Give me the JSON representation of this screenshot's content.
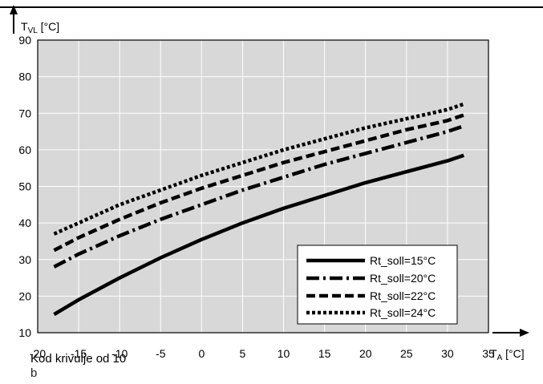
{
  "chart_data": {
    "type": "line",
    "y_axis_label": {
      "main": "T",
      "sub": "VL",
      "unit": " [°C]"
    },
    "x_axis_label": {
      "main": "T",
      "sub": "A",
      "unit": " [°C]"
    },
    "ylim": [
      10,
      90
    ],
    "xlim": [
      -20,
      35
    ],
    "y_ticks": [
      10,
      20,
      30,
      40,
      50,
      60,
      70,
      80,
      90
    ],
    "x_ticks": [
      -20,
      -15,
      -10,
      -5,
      0,
      5,
      10,
      15,
      20,
      25,
      30,
      35
    ],
    "x_tick_labels": [
      "-20",
      "-15",
      "-10",
      "-5",
      "0",
      "5",
      "10",
      "15",
      "20",
      "25",
      "30",
      "35"
    ],
    "grid": true,
    "legend_position": "bottom-right",
    "x": [
      -18,
      -15,
      -10,
      -5,
      0,
      5,
      10,
      15,
      20,
      25,
      30,
      32
    ],
    "series": [
      {
        "name": "Rt_soll=15°C",
        "style": "solid",
        "values": [
          15,
          19,
          25,
          30.5,
          35.5,
          40,
          44,
          47.5,
          51,
          54,
          57,
          58.5
        ]
      },
      {
        "name": "Rt_soll=20°C",
        "style": "dash-dot",
        "values": [
          28,
          31.5,
          36.5,
          41,
          45,
          49,
          52.5,
          56,
          59,
          62,
          65,
          66.5
        ]
      },
      {
        "name": "Rt_soll=22°C",
        "style": "dashed",
        "values": [
          32.5,
          36,
          41,
          45.5,
          49.5,
          53,
          56.5,
          59.5,
          62.5,
          65.5,
          68,
          69.5
        ]
      },
      {
        "name": "Rt_soll=24°C",
        "style": "dotted",
        "values": [
          37,
          40,
          45,
          49,
          53,
          56.5,
          60,
          63,
          66,
          68.5,
          71,
          72.5
        ]
      }
    ],
    "legend_labels": [
      "Rt_soll=15°C",
      "Rt_soll=20°C",
      "Rt_soll=22°C",
      "Rt_soll=24°C"
    ]
  },
  "caption": "Kod krivulje od 10",
  "caption_sub": "b",
  "colors": {
    "plot_bg": "#d8d8d8",
    "grid": "#ffffff",
    "line": "#000000"
  }
}
